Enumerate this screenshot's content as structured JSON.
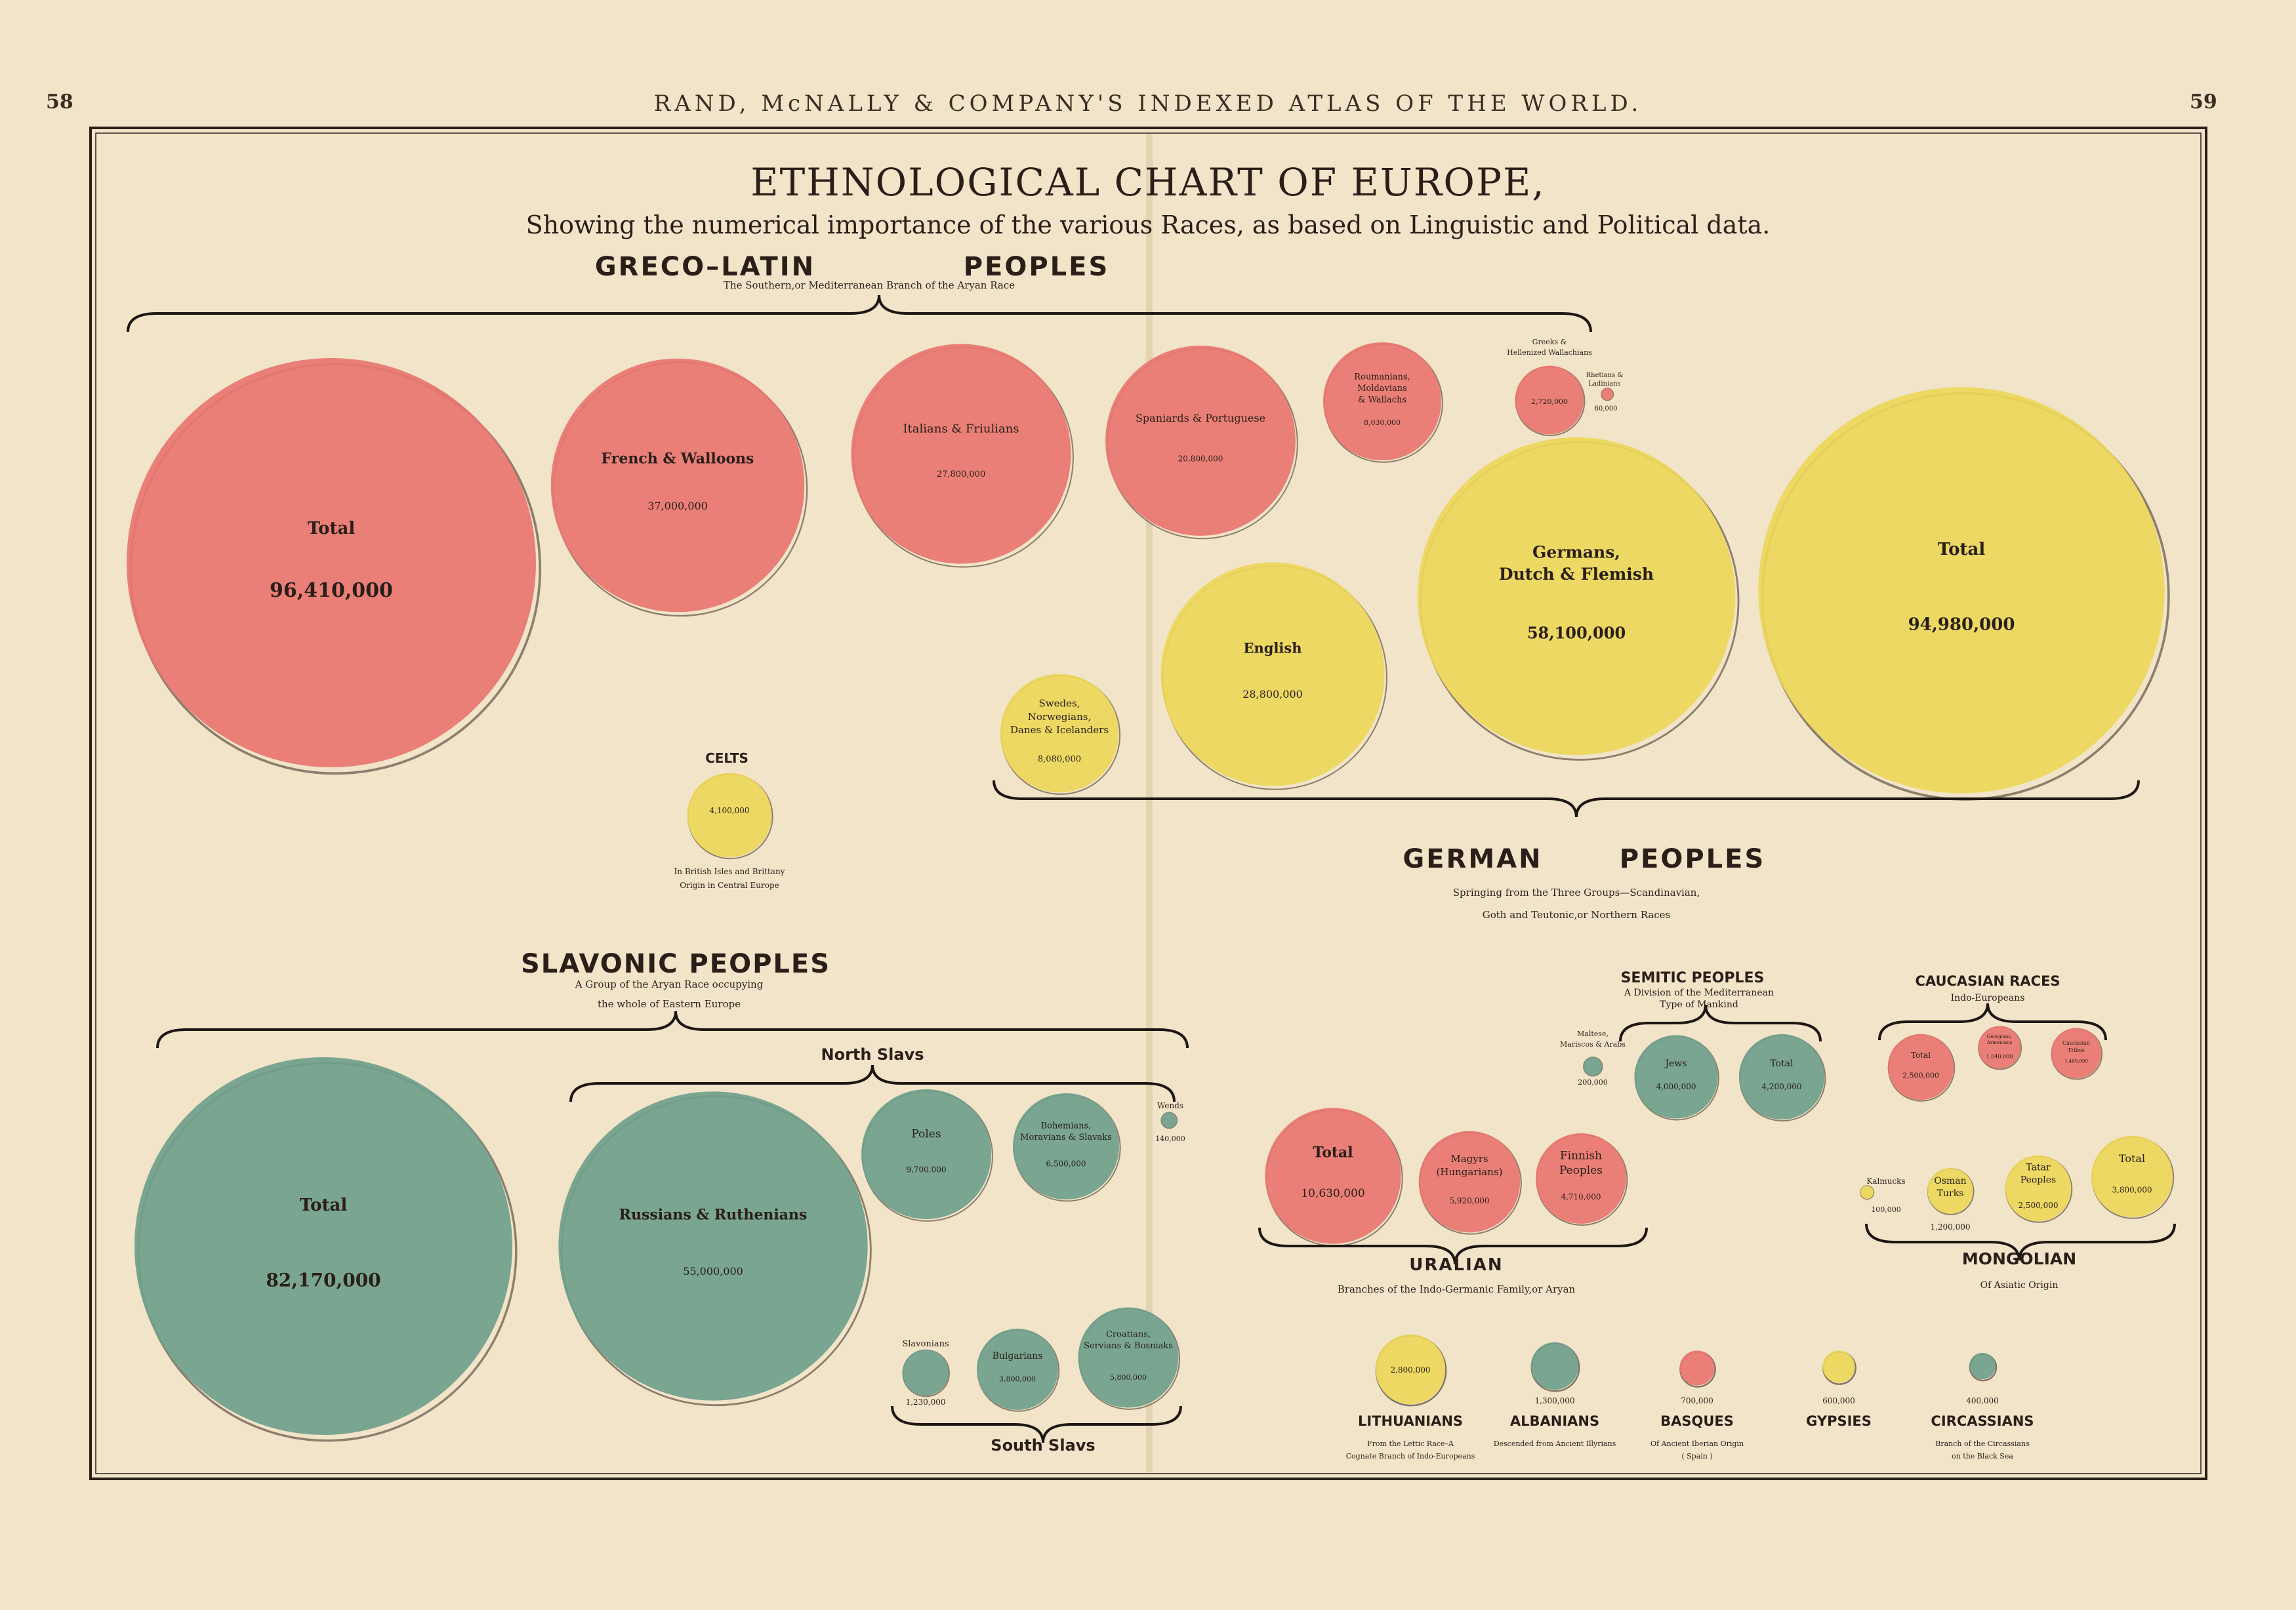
{
  "header": {
    "page_left": "58",
    "running_title": "RAND, McNALLY & COMPANY'S INDEXED ATLAS OF THE WORLD.",
    "page_right": "59"
  },
  "chart_data": {
    "type": "bubble",
    "title": "ETHNOLOGICAL CHART OF EUROPE,",
    "subtitle": "Showing the numerical importance of the various Races, as based on Linguistic and Political data.",
    "colors": {
      "greco_latin": "#e87670",
      "german": "#ecd75a",
      "slavonic": "#6fa08c",
      "uralian": "#e87670",
      "semitic": "#6fa08c",
      "caucasian": "#e87670",
      "mongolian": "#ecd75a"
    },
    "groups": [
      {
        "id": "greco-latin",
        "heading_a": "GRECO–LATIN",
        "heading_b": "PEOPLES",
        "caption": [
          "The Southern,or Mediterranean Branch of the Aryan Race"
        ],
        "items": [
          {
            "name": "Total",
            "value": 96410000,
            "label": "96,410,000",
            "color": "#e87670"
          },
          {
            "name": "French & Walloons",
            "value": 37000000,
            "label": "37,000,000",
            "color": "#e87670"
          },
          {
            "name": "Italians & Friulians",
            "value": 27800000,
            "label": "27,800,000",
            "color": "#e87670"
          },
          {
            "name": "Spaniards & Portuguese",
            "value": 20800000,
            "label": "20,800,000",
            "color": "#e87670"
          },
          {
            "name": "Roumanians, Moldavians & Wallachs",
            "value": 8030000,
            "label": "8,030,000",
            "color": "#e87670"
          },
          {
            "name": "Greeks & Hellenized Wallachians",
            "value": 2720000,
            "label": "2,720,000",
            "color": "#e87670"
          },
          {
            "name": "Rhetians & Ladinians",
            "value": 60000,
            "label": "60,000",
            "color": "#e87670"
          }
        ]
      },
      {
        "id": "german",
        "heading_a": "GERMAN",
        "heading_b": "PEOPLES",
        "caption": [
          "Springing from the Three Groups—Scandinavian,",
          "Goth and Teutonic,or Northern Races"
        ],
        "items": [
          {
            "name": "Swedes, Norwegians, Danes & Icelanders",
            "value": 8080000,
            "label": "8,080,000",
            "color": "#ecd75a"
          },
          {
            "name": "English",
            "value": 28800000,
            "label": "28,800,000",
            "color": "#ecd75a"
          },
          {
            "name": "Germans, Dutch & Flemish",
            "value": 58100000,
            "label": "58,100,000",
            "color": "#ecd75a"
          },
          {
            "name": "Total",
            "value": 94980000,
            "label": "94,980,000",
            "color": "#ecd75a"
          }
        ]
      },
      {
        "id": "celts",
        "heading": "CELTS",
        "caption": [
          "In British Isles and Brittany",
          "Origin in Central Europe"
        ],
        "items": [
          {
            "name": "Celts",
            "value": 4100000,
            "label": "4,100,000",
            "color": "#ecd75a"
          }
        ]
      },
      {
        "id": "slavonic",
        "heading": "SLAVONIC PEOPLES",
        "caption": [
          "A Group of the Aryan Race occupying",
          "the whole of Eastern Europe"
        ],
        "sub_north": "North Slavs",
        "sub_south": "South Slavs",
        "items": [
          {
            "name": "Total",
            "value": 82170000,
            "label": "82,170,000",
            "color": "#6fa08c"
          },
          {
            "name": "Russians & Ruthenians",
            "value": 55000000,
            "label": "55,000,000",
            "color": "#6fa08c"
          },
          {
            "name": "Poles",
            "value": 9700000,
            "label": "9,700,000",
            "color": "#6fa08c"
          },
          {
            "name": "Bohemians, Moravians & Slavaks",
            "value": 6500000,
            "label": "6,500,000",
            "color": "#6fa08c"
          },
          {
            "name": "Wends",
            "value": 140000,
            "label": "140,000",
            "color": "#6fa08c"
          },
          {
            "name": "Slavonians",
            "value": 1230000,
            "label": "1,230,000",
            "color": "#6fa08c"
          },
          {
            "name": "Bulgarians",
            "value": 3800000,
            "label": "3,800,000",
            "color": "#6fa08c"
          },
          {
            "name": "Croatians, Servians & Bosniaks",
            "value": 5800000,
            "label": "5,800,000",
            "color": "#6fa08c"
          }
        ]
      },
      {
        "id": "uralian",
        "heading": "URALIAN",
        "caption": [
          "Branches of the Indo-Germanic Family,or Aryan"
        ],
        "items": [
          {
            "name": "Total",
            "value": 10630000,
            "label": "10,630,000",
            "color": "#e87670"
          },
          {
            "name": "Magyrs (Hungarians)",
            "value": 5920000,
            "label": "5,920,000",
            "color": "#e87670"
          },
          {
            "name": "Finnish Peoples",
            "value": 4710000,
            "label": "4,710,000",
            "color": "#e87670"
          }
        ]
      },
      {
        "id": "semitic",
        "heading": "SEMITIC PEOPLES",
        "caption": [
          "A Division of the Mediterranean",
          "Type of Mankind"
        ],
        "items": [
          {
            "name": "Maltese, Mariscos & Arabs",
            "value": 200000,
            "label": "200,000",
            "color": "#6fa08c"
          },
          {
            "name": "Jews",
            "value": 4000000,
            "label": "4,000,000",
            "color": "#6fa08c"
          },
          {
            "name": "Total",
            "value": 4200000,
            "label": "4,200,000",
            "color": "#6fa08c"
          }
        ]
      },
      {
        "id": "caucasian",
        "heading": "CAUCASIAN RACES",
        "caption": [
          "Indo-Europeans"
        ],
        "items": [
          {
            "name": "Total",
            "value": 2500000,
            "label": "2,500,000",
            "color": "#e87670"
          },
          {
            "name": "Georgians, Armenians",
            "value": 1040000,
            "label": "1,040,000",
            "color": "#e87670"
          },
          {
            "name": "Caucasian Tribes",
            "value": 1460000,
            "label": "1,460,000",
            "color": "#e87670"
          }
        ]
      },
      {
        "id": "mongolian",
        "heading": "MONGOLIAN",
        "caption": [
          "Of Asiatic Origin"
        ],
        "items": [
          {
            "name": "Kalmucks",
            "value": 100000,
            "label": "100,000",
            "color": "#ecd75a"
          },
          {
            "name": "Osman Turks",
            "value": 1200000,
            "label": "1,200,000",
            "color": "#ecd75a"
          },
          {
            "name": "Tatar Peoples",
            "value": 2500000,
            "label": "2,500,000",
            "color": "#ecd75a"
          },
          {
            "name": "Total",
            "value": 3800000,
            "label": "3,800,000",
            "color": "#ecd75a"
          }
        ]
      },
      {
        "id": "minor",
        "items": [
          {
            "name": "LITHUANIANS",
            "value": 2800000,
            "label": "2,800,000",
            "color": "#ecd75a",
            "caption": [
              "From the Lettic Race–A",
              "Cognate Branch of Indo-Europeans"
            ]
          },
          {
            "name": "ALBANIANS",
            "value": 1300000,
            "label": "1,300,000",
            "color": "#6fa08c",
            "caption": [
              "Descended from Ancient Illyrians"
            ]
          },
          {
            "name": "BASQUES",
            "value": 700000,
            "label": "700,000",
            "color": "#e87670",
            "caption": [
              "Of Ancient Iberian Origin",
              "( Spain )"
            ]
          },
          {
            "name": "GYPSIES",
            "value": 600000,
            "label": "600,000",
            "color": "#ecd75a",
            "caption": []
          },
          {
            "name": "CIRCASSIANS",
            "value": 400000,
            "label": "400,000",
            "color": "#6fa08c",
            "caption": [
              "Branch of the Circassians",
              "on the Black Sea"
            ]
          }
        ]
      }
    ]
  }
}
